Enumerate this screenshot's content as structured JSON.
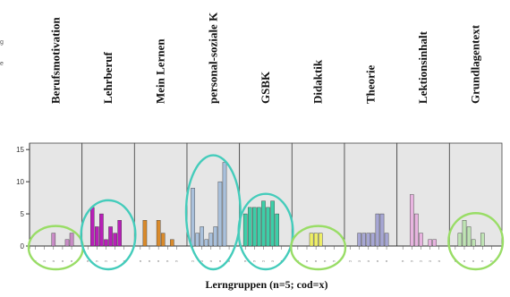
{
  "edge_fragments": [
    "g",
    "e"
  ],
  "chart_data": {
    "type": "bar",
    "xlabel": "Lerngruppen (n=5; cod=x)",
    "ylabel": "",
    "yticks": [
      0,
      5,
      10,
      15
    ],
    "ylim": [
      0,
      16
    ],
    "grid": false,
    "mini_tick_label": "n",
    "panels": [
      {
        "label": "Berufsmotivation",
        "color": "#c98cc6",
        "values": [
          0,
          0,
          0,
          0,
          2,
          0,
          0,
          1,
          2,
          0
        ]
      },
      {
        "label": "Lehrberuf",
        "color": "#b81fb8",
        "values": [
          0,
          6,
          3,
          5,
          1,
          3,
          2,
          4,
          0,
          0
        ]
      },
      {
        "label": "Mein Lernen",
        "color": "#d98a2b",
        "values": [
          0,
          4,
          0,
          0,
          4,
          2,
          0,
          1,
          0,
          0
        ]
      },
      {
        "label": "personal-soziale K",
        "color": "#a9c0db",
        "values": [
          9,
          2,
          3,
          1,
          2,
          3,
          10,
          13,
          0,
          0
        ]
      },
      {
        "label": "GSBK",
        "color": "#3ccfa8",
        "values": [
          5,
          6,
          6,
          6,
          7,
          6,
          7,
          5,
          0,
          0
        ]
      },
      {
        "label": "Didaktik",
        "color": "#eeee66",
        "values": [
          0,
          0,
          0,
          2,
          2,
          2,
          0,
          0,
          0,
          0
        ]
      },
      {
        "label": "Theorie",
        "color": "#a7a7d4",
        "values": [
          0,
          0,
          2,
          2,
          2,
          2,
          5,
          5,
          2,
          0
        ]
      },
      {
        "label": "Lektionsinhalt",
        "color": "#e8b4e0",
        "values": [
          0,
          0,
          8,
          5,
          2,
          0,
          1,
          1,
          0,
          0
        ]
      },
      {
        "label": "Grundlagentext",
        "color": "#bfe3b4",
        "values": [
          0,
          2,
          4,
          3,
          1,
          0,
          2,
          0,
          0,
          0
        ]
      }
    ],
    "highlights": [
      {
        "panel": 0,
        "color": "#99dd66"
      },
      {
        "panel": 1,
        "color": "#44ccbb"
      },
      {
        "panel": 3,
        "color": "#44ccbb"
      },
      {
        "panel": 4,
        "color": "#44ccbb"
      },
      {
        "panel": 5,
        "color": "#99dd66"
      },
      {
        "panel": 8,
        "color": "#99dd66"
      }
    ]
  }
}
